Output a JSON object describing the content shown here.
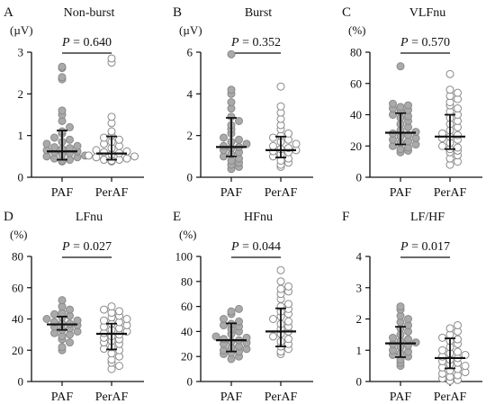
{
  "chart_data": [
    {
      "type": "scatter",
      "panel": "A",
      "title": "Non-burst",
      "ylabel": "(µV)",
      "ylim": [
        0,
        3
      ],
      "yticks": [
        "0",
        "1",
        "2",
        "3"
      ],
      "categories": [
        "PAF",
        "PerAF"
      ],
      "comparison": {
        "p_label": "P",
        "p_text": " = 0.640"
      },
      "groups": [
        {
          "category": "PAF",
          "marker": "filled",
          "median": 0.62,
          "q1": 0.42,
          "q3": 1.12,
          "values": [
            2.65,
            2.62,
            2.4,
            2.35,
            1.6,
            1.5,
            1.35,
            1.2,
            1.1,
            1.05,
            0.95,
            0.9,
            0.85,
            0.8,
            0.75,
            0.72,
            0.7,
            0.68,
            0.65,
            0.62,
            0.6,
            0.58,
            0.55,
            0.52,
            0.5,
            0.48,
            0.45,
            0.42,
            0.4,
            0.38
          ]
        },
        {
          "category": "PerAF",
          "marker": "open",
          "median": 0.57,
          "q1": 0.42,
          "q3": 0.98,
          "values": [
            2.85,
            2.75,
            1.45,
            1.3,
            1.1,
            1.0,
            0.95,
            0.9,
            0.85,
            0.8,
            0.75,
            0.7,
            0.65,
            0.62,
            0.6,
            0.58,
            0.55,
            0.52,
            0.5,
            0.48,
            0.45,
            0.42,
            0.42,
            0.4,
            0.38
          ]
        }
      ]
    },
    {
      "type": "scatter",
      "panel": "B",
      "title": "Burst",
      "ylabel": "(µV)",
      "ylim": [
        0,
        6
      ],
      "yticks": [
        "0",
        "2",
        "4",
        "6"
      ],
      "categories": [
        "PAF",
        "PerAF"
      ],
      "comparison": {
        "p_label": "P",
        "p_text": " = 0.352"
      },
      "groups": [
        {
          "category": "PAF",
          "marker": "filled",
          "median": 1.45,
          "q1": 1.0,
          "q3": 2.85,
          "values": [
            5.9,
            4.2,
            4.0,
            3.6,
            3.3,
            2.9,
            2.7,
            2.5,
            2.3,
            2.1,
            1.9,
            1.8,
            1.7,
            1.6,
            1.5,
            1.45,
            1.4,
            1.3,
            1.2,
            1.1,
            1.0,
            0.9,
            0.8,
            0.7,
            0.6,
            0.5,
            0.4
          ]
        },
        {
          "category": "PerAF",
          "marker": "open",
          "median": 1.3,
          "q1": 0.95,
          "q3": 1.95,
          "values": [
            4.35,
            3.4,
            3.1,
            2.8,
            2.5,
            2.3,
            2.1,
            2.0,
            1.9,
            1.8,
            1.7,
            1.6,
            1.5,
            1.4,
            1.35,
            1.3,
            1.25,
            1.2,
            1.1,
            1.0,
            0.9,
            0.8,
            0.7,
            0.6,
            0.5
          ]
        }
      ]
    },
    {
      "type": "scatter",
      "panel": "C",
      "title": "VLFnu",
      "ylabel": "(%)",
      "ylim": [
        0,
        80
      ],
      "yticks": [
        "0",
        "20",
        "40",
        "60",
        "80"
      ],
      "categories": [
        "PAF",
        "PerAF"
      ],
      "comparison": {
        "p_label": "P",
        "p_text": " = 0.570"
      },
      "groups": [
        {
          "category": "PAF",
          "marker": "filled",
          "median": 28.5,
          "q1": 21.0,
          "q3": 41.0,
          "values": [
            71,
            47,
            46,
            45,
            44,
            43,
            42,
            40,
            39,
            38,
            36,
            34,
            32,
            30,
            29,
            28,
            27,
            26,
            25,
            24,
            23,
            22,
            21,
            20,
            19,
            18,
            17,
            16
          ]
        },
        {
          "category": "PerAF",
          "marker": "open",
          "median": 26.0,
          "q1": 18.0,
          "q3": 40.0,
          "values": [
            66,
            56,
            54,
            52,
            50,
            48,
            46,
            44,
            42,
            40,
            38,
            36,
            34,
            32,
            30,
            28,
            27,
            26,
            25,
            24,
            22,
            20,
            19,
            18,
            17,
            16,
            14,
            12,
            10,
            8
          ]
        }
      ]
    },
    {
      "type": "scatter",
      "panel": "D",
      "title": "LFnu",
      "ylabel": "(%)",
      "ylim": [
        0,
        80
      ],
      "yticks": [
        "0",
        "20",
        "40",
        "60",
        "80"
      ],
      "categories": [
        "PAF",
        "PerAF"
      ],
      "comparison": {
        "p_label": "P",
        "p_text": " = 0.027"
      },
      "groups": [
        {
          "category": "PAF",
          "marker": "filled",
          "median": 36.5,
          "q1": 33.0,
          "q3": 41.5,
          "values": [
            52,
            48,
            46,
            44,
            43,
            42,
            41,
            40,
            39,
            38,
            37,
            37,
            36,
            35,
            34,
            33,
            32,
            31,
            30,
            29,
            27,
            25,
            22,
            20
          ]
        },
        {
          "category": "PerAF",
          "marker": "open",
          "median": 30.5,
          "q1": 20.5,
          "q3": 37.0,
          "values": [
            48,
            46,
            45,
            44,
            42,
            41,
            40,
            39,
            38,
            37,
            36,
            35,
            34,
            33,
            32,
            31,
            30,
            29,
            28,
            27,
            26,
            25,
            24,
            22,
            21,
            20,
            18,
            16,
            14,
            12,
            10,
            8
          ]
        }
      ]
    },
    {
      "type": "scatter",
      "panel": "E",
      "title": "HFnu",
      "ylabel": "(%)",
      "ylim": [
        0,
        100
      ],
      "yticks": [
        "0",
        "20",
        "40",
        "60",
        "80",
        "100"
      ],
      "categories": [
        "PAF",
        "PerAF"
      ],
      "comparison": {
        "p_label": "P",
        "p_text": " = 0.044"
      },
      "groups": [
        {
          "category": "PAF",
          "marker": "filled",
          "median": 33.0,
          "q1": 24.0,
          "q3": 46.5,
          "values": [
            58,
            56,
            54,
            50,
            48,
            46,
            45,
            44,
            42,
            40,
            38,
            36,
            35,
            34,
            33,
            32,
            31,
            30,
            28,
            27,
            26,
            25,
            24,
            23,
            22,
            20,
            18
          ]
        },
        {
          "category": "PerAF",
          "marker": "open",
          "median": 40.0,
          "q1": 28.0,
          "q3": 58.5,
          "values": [
            89,
            80,
            76,
            74,
            72,
            70,
            66,
            62,
            60,
            58,
            56,
            54,
            52,
            50,
            48,
            46,
            44,
            42,
            40,
            38,
            36,
            34,
            32,
            30,
            28,
            26,
            24,
            22
          ]
        }
      ]
    },
    {
      "type": "scatter",
      "panel": "F",
      "title": "LF/HF",
      "ylabel": "",
      "ylim": [
        0,
        4
      ],
      "yticks": [
        "0",
        "1",
        "2",
        "3",
        "4"
      ],
      "categories": [
        "PAF",
        "PerAF"
      ],
      "comparison": {
        "p_label": "P",
        "p_text": " = 0.017"
      },
      "groups": [
        {
          "category": "PAF",
          "marker": "filled",
          "median": 1.22,
          "q1": 0.78,
          "q3": 1.75,
          "values": [
            2.4,
            2.3,
            2.1,
            2.0,
            1.9,
            1.8,
            1.7,
            1.6,
            1.5,
            1.4,
            1.35,
            1.3,
            1.25,
            1.2,
            1.15,
            1.1,
            1.0,
            0.95,
            0.9,
            0.85,
            0.8,
            0.7,
            0.6,
            0.5
          ]
        },
        {
          "category": "PerAF",
          "marker": "open",
          "median": 0.75,
          "q1": 0.42,
          "q3": 1.38,
          "values": [
            1.8,
            1.7,
            1.6,
            1.5,
            1.4,
            1.35,
            1.3,
            1.2,
            1.1,
            1.0,
            0.95,
            0.9,
            0.85,
            0.8,
            0.75,
            0.7,
            0.65,
            0.6,
            0.55,
            0.5,
            0.45,
            0.4,
            0.35,
            0.3,
            0.25,
            0.2,
            0.15,
            0.1,
            0.05,
            0.02
          ]
        }
      ]
    }
  ],
  "colors": {
    "filled_marker": "#aaaaaa",
    "filled_marker_stroke": "#8a8a8a",
    "open_marker_fill": "#ffffff",
    "open_marker_stroke": "#8a8a8a",
    "axis": "#111111",
    "summary_bar": "#111111"
  }
}
